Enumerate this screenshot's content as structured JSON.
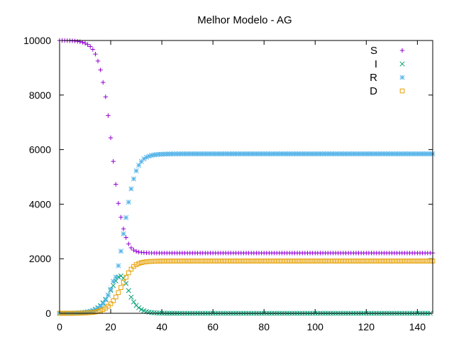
{
  "chart_data": {
    "type": "scatter",
    "title": "Melhor Modelo - AG",
    "xlabel": "",
    "ylabel": "",
    "xlim": [
      0,
      146
    ],
    "ylim": [
      0,
      10000
    ],
    "xticks": [
      0,
      20,
      40,
      60,
      80,
      100,
      120,
      140
    ],
    "yticks": [
      0,
      2000,
      4000,
      6000,
      8000,
      10000
    ],
    "x_spacing": 1,
    "grid": false,
    "legend_position": "top-right",
    "series": [
      {
        "name": "S",
        "color": "#9400d3",
        "marker": "plus",
        "values": [
          10000,
          10000,
          9998,
          9996,
          9993,
          9988,
          9981,
          9970,
          9954,
          9931,
          9898,
          9850,
          9780,
          9673,
          9501,
          9247,
          8922,
          8465,
          7934,
          7249,
          6433,
          5570,
          4729,
          4031,
          3519,
          3097,
          2774,
          2544,
          2398,
          2317,
          2271,
          2244,
          2232,
          2224,
          2219,
          2215,
          2213,
          2211,
          2210,
          2210,
          2209,
          2209,
          2209,
          2209,
          2209,
          2209,
          2209,
          2209,
          2209,
          2209,
          2209,
          2209,
          2209,
          2209,
          2209,
          2209,
          2209,
          2209,
          2209,
          2209,
          2209,
          2209,
          2209,
          2209,
          2209,
          2209,
          2209,
          2209,
          2209,
          2209,
          2209,
          2209,
          2209,
          2209,
          2209,
          2209,
          2209,
          2209,
          2209,
          2209,
          2209,
          2209,
          2209,
          2209,
          2209,
          2209,
          2209,
          2209,
          2209,
          2209,
          2209,
          2209,
          2209,
          2209,
          2209,
          2209,
          2209,
          2209,
          2209,
          2209,
          2209,
          2209,
          2209,
          2209,
          2209,
          2209,
          2209,
          2209,
          2209,
          2209,
          2209,
          2209,
          2209,
          2209,
          2209,
          2209,
          2209,
          2209,
          2209,
          2209,
          2209,
          2209,
          2209,
          2209,
          2209,
          2209,
          2209,
          2209,
          2209,
          2209,
          2209,
          2209,
          2209,
          2209,
          2209,
          2209,
          2209,
          2209,
          2209,
          2209,
          2209,
          2209,
          2209,
          2209,
          2209,
          2209,
          2209,
          2209,
          2209,
          2209
        ]
      },
      {
        "name": "I",
        "color": "#009e73",
        "marker": "cross",
        "values": [
          0,
          1,
          2,
          3,
          4,
          6,
          9,
          13,
          19,
          27,
          38,
          54,
          75,
          105,
          149,
          207,
          284,
          385,
          513,
          665,
          838,
          1018,
          1187,
          1330,
          1370,
          1286,
          1092,
          831,
          592,
          417,
          289,
          205,
          138,
          92,
          62,
          42,
          28,
          19,
          13,
          9,
          6,
          4,
          3,
          2,
          1,
          1,
          1,
          0,
          0,
          0,
          0,
          0,
          0,
          0,
          0,
          0,
          0,
          0,
          0,
          0,
          0,
          0,
          0,
          0,
          0,
          0,
          0,
          0,
          0,
          0,
          0,
          0,
          0,
          0,
          0,
          0,
          0,
          0,
          0,
          0,
          0,
          0,
          0,
          0,
          0,
          0,
          0,
          0,
          0,
          0,
          0,
          0,
          0,
          0,
          0,
          0,
          0,
          0,
          0,
          0,
          0,
          0,
          0,
          0,
          0,
          0,
          0,
          0,
          0,
          0,
          0,
          0,
          0,
          0,
          0,
          0,
          0,
          0,
          0,
          0,
          0,
          0,
          0,
          0,
          0,
          0,
          0,
          0,
          0,
          0,
          0,
          0,
          0,
          0,
          0,
          0,
          0,
          0,
          0,
          0,
          0,
          0,
          0,
          0,
          0,
          0
        ]
      },
      {
        "name": "R",
        "color": "#56b4e9",
        "marker": "star",
        "values": [
          0,
          0,
          1,
          2,
          3,
          4,
          6,
          9,
          14,
          20,
          30,
          43,
          62,
          89,
          128,
          182,
          256,
          356,
          491,
          665,
          885,
          1169,
          1322,
          1745,
          2277,
          2912,
          3507,
          4075,
          4561,
          4927,
          5222,
          5426,
          5564,
          5658,
          5720,
          5761,
          5789,
          5807,
          5819,
          5827,
          5832,
          5836,
          5839,
          5841,
          5842,
          5843,
          5843,
          5844,
          5844,
          5844,
          5844,
          5844,
          5844,
          5844,
          5844,
          5844,
          5844,
          5844,
          5844,
          5844,
          5844,
          5844,
          5844,
          5844,
          5844,
          5844,
          5844,
          5844,
          5844,
          5844,
          5844,
          5844,
          5844,
          5844,
          5844,
          5844,
          5844,
          5844,
          5844,
          5844,
          5844,
          5844,
          5844,
          5844,
          5844,
          5844,
          5844,
          5844,
          5844,
          5844,
          5844,
          5844,
          5844,
          5844,
          5844,
          5844,
          5844,
          5844,
          5844,
          5844,
          5844,
          5844,
          5844,
          5844,
          5844,
          5844,
          5844,
          5844,
          5844,
          5844,
          5844,
          5844,
          5844,
          5844,
          5844,
          5844,
          5844,
          5844,
          5844,
          5844,
          5844,
          5844,
          5844,
          5844,
          5844,
          5844,
          5844,
          5844,
          5844,
          5844,
          5844,
          5844,
          5844,
          5844,
          5844,
          5844,
          5844,
          5844,
          5844,
          5844,
          5844,
          5844,
          5844,
          5844,
          5844,
          5844,
          5844,
          5844
        ]
      },
      {
        "name": "D",
        "color": "#e69f00",
        "marker": "square",
        "values": [
          0,
          0,
          0,
          1,
          1,
          2,
          3,
          4,
          6,
          8,
          12,
          17,
          24,
          34,
          49,
          70,
          99,
          138,
          191,
          260,
          348,
          460,
          598,
          760,
          945,
          1136,
          1321,
          1485,
          1616,
          1715,
          1781,
          1826,
          1856,
          1876,
          1889,
          1898,
          1904,
          1908,
          1911,
          1913,
          1914,
          1915,
          1915,
          1916,
          1916,
          1916,
          1916,
          1916,
          1916,
          1916,
          1916,
          1916,
          1916,
          1916,
          1916,
          1916,
          1916,
          1916,
          1916,
          1916,
          1916,
          1916,
          1916,
          1916,
          1916,
          1916,
          1916,
          1916,
          1916,
          1916,
          1916,
          1916,
          1916,
          1916,
          1916,
          1916,
          1916,
          1916,
          1916,
          1916,
          1916,
          1916,
          1916,
          1916,
          1916,
          1916,
          1916,
          1916,
          1916,
          1916,
          1916,
          1916,
          1916,
          1916,
          1916,
          1916,
          1916,
          1916,
          1916,
          1916,
          1916,
          1916,
          1916,
          1916,
          1916,
          1916,
          1916,
          1916,
          1916,
          1916,
          1916,
          1916,
          1916,
          1916,
          1916,
          1916,
          1916,
          1916,
          1916,
          1916,
          1916,
          1916,
          1916,
          1916,
          1916,
          1916,
          1916,
          1916,
          1916,
          1916,
          1916,
          1916,
          1916,
          1916,
          1916,
          1916,
          1916,
          1916,
          1916,
          1916,
          1916,
          1916,
          1916,
          1916,
          1916,
          1916,
          1916,
          1916,
          1916
        ]
      }
    ]
  }
}
